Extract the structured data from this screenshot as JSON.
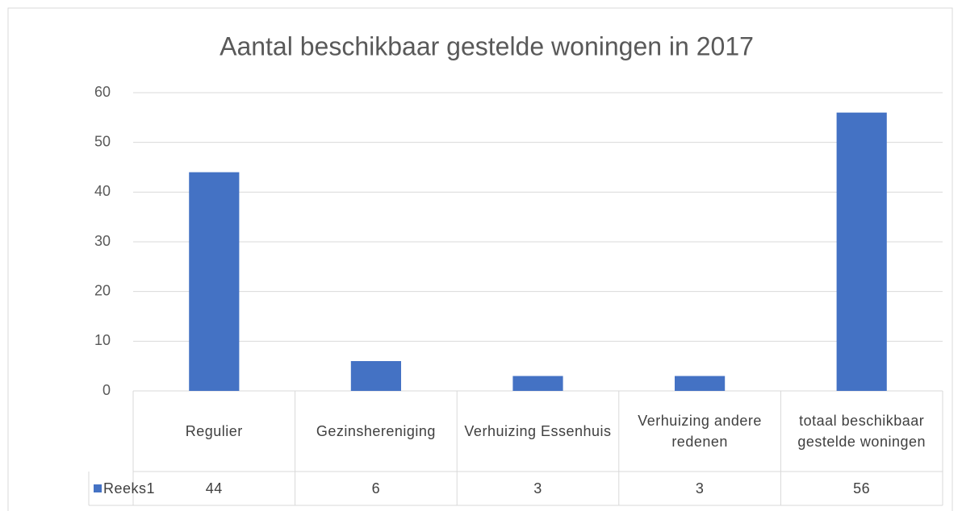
{
  "chart_data": {
    "type": "bar",
    "title": "Aantal beschikbaar gestelde woningen in 2017",
    "categories": [
      "Regulier",
      "Gezinshereniging",
      "Verhuizing Essenhuis",
      "Verhuizing andere redenen",
      "totaal beschikbaar gestelde woningen"
    ],
    "series": [
      {
        "name": "Reeks1",
        "color": "#4472c4",
        "values": [
          44,
          6,
          3,
          3,
          56
        ]
      }
    ],
    "ylim": [
      0,
      60
    ],
    "yticks": [
      0,
      10,
      20,
      30,
      40,
      50,
      60
    ],
    "grid": true
  }
}
